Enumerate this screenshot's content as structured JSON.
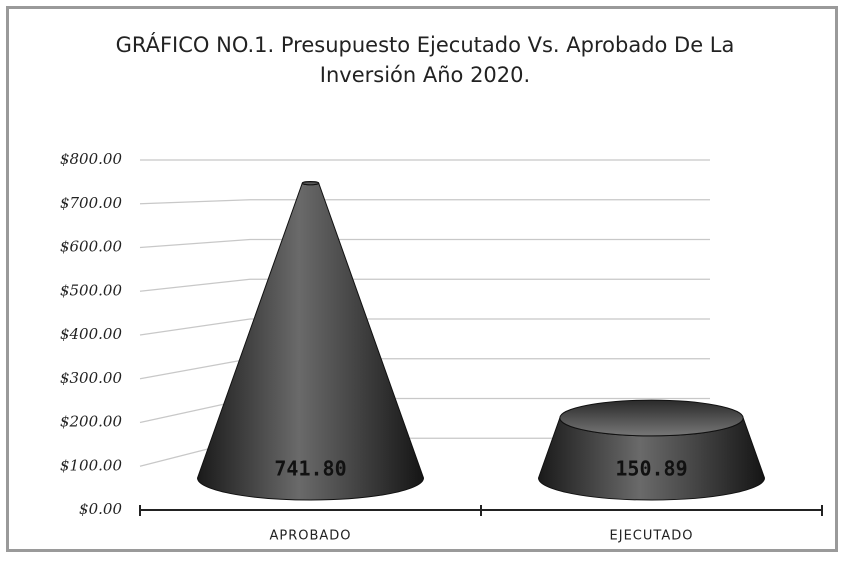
{
  "chart_data": {
    "type": "cone",
    "title": "GRÁFICO NO.1. Presupuesto Ejecutado Vs. Aprobado De La Inversión Año 2020.",
    "categories": [
      "APROBADO",
      "EJECUTADO"
    ],
    "values": [
      741.8,
      150.89
    ],
    "value_labels": [
      "741.80",
      "150.89"
    ],
    "color": "#3a3a3a",
    "ylim": [
      0,
      800
    ],
    "yticks": [
      {
        "value": 0,
        "label": "$0.00"
      },
      {
        "value": 100,
        "label": "$100.00"
      },
      {
        "value": 200,
        "label": "$200.00"
      },
      {
        "value": 300,
        "label": "$300.00"
      },
      {
        "value": 400,
        "label": "$400.00"
      },
      {
        "value": 500,
        "label": "$500.00"
      },
      {
        "value": 600,
        "label": "$600.00"
      },
      {
        "value": 700,
        "label": "$700.00"
      },
      {
        "value": 800,
        "label": "$800.00"
      }
    ],
    "grid": true
  }
}
